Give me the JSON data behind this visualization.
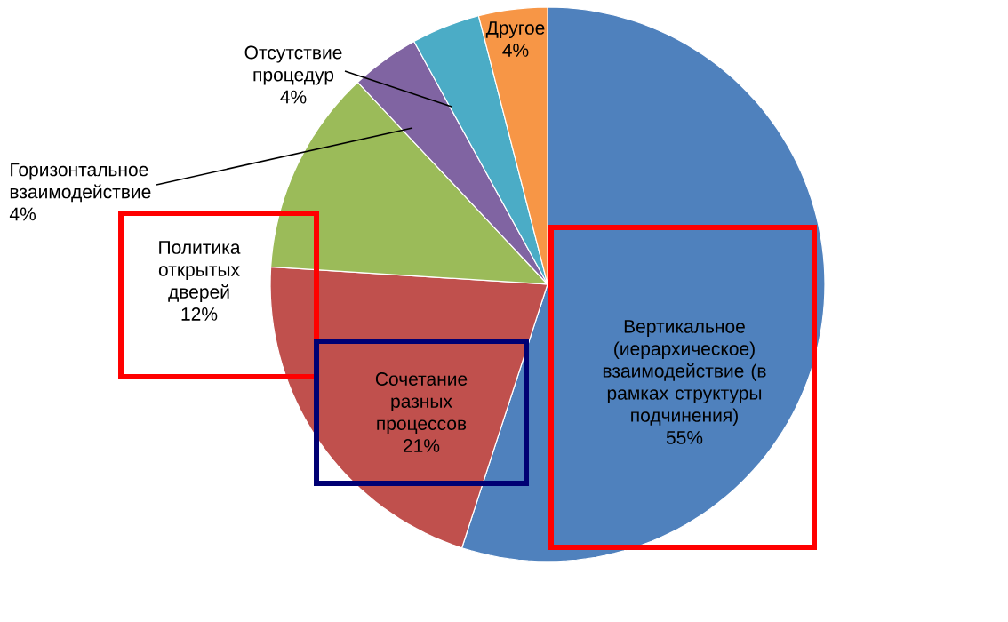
{
  "chart_data": {
    "type": "pie",
    "categories": [
      "Вертикальное (иерархическое) взаимодействие (в рамках структуры подчинения)",
      "Сочетание разных процессов",
      "Политика открытых дверей",
      "Горизонтальное взаимодействие",
      "Отсутствие процедур",
      "Другое"
    ],
    "values": [
      55,
      21,
      12,
      4,
      4,
      4
    ],
    "colors": [
      "#4f81bd",
      "#c0504d",
      "#9bbb59",
      "#8064a2",
      "#4bacc6",
      "#f79646"
    ],
    "value_labels": [
      "55%",
      "21%",
      "12%",
      "4%",
      "4%",
      "4%"
    ]
  }
}
